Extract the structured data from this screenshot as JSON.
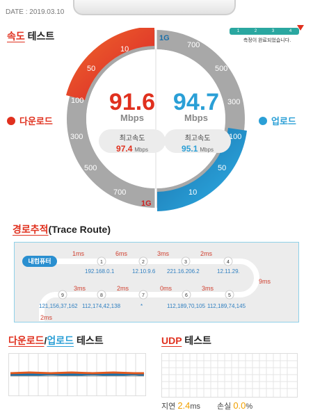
{
  "header": {
    "date_label": "DATE :",
    "date_value": "2019.03.10"
  },
  "speed_test": {
    "title_part1": "속도",
    "title_part2": " 테스트",
    "progress": {
      "steps": [
        "1",
        "2",
        "3",
        "4"
      ],
      "value_fraction": 1.0,
      "status_text": "측정이 완료되었습니다."
    },
    "download": {
      "label": "다운로드",
      "speed": "91.6",
      "unit": "Mbps",
      "max_label": "최고속도",
      "max_value": "97.4",
      "max_unit": "Mbps",
      "scale_labels": [
        "10",
        "50",
        "100",
        "300",
        "500",
        "700",
        "1G"
      ],
      "color": "#e0301e"
    },
    "upload": {
      "label": "업로드",
      "speed": "94.7",
      "unit": "Mbps",
      "max_label": "최고속도",
      "max_value": "95.1",
      "max_unit": "Mbps",
      "scale_labels": [
        "1G",
        "700",
        "500",
        "300",
        "100",
        "50",
        "10"
      ],
      "color": "#2a9fd6"
    }
  },
  "trace_route": {
    "title_main": "경로추적",
    "title_paren": "(Trace Route)",
    "start_label": "내컴퓨터",
    "hops": [
      {
        "n": "1",
        "ip": "192.168.0.1",
        "ms": "1ms"
      },
      {
        "n": "2",
        "ip": "12.10.9.6",
        "ms": "6ms"
      },
      {
        "n": "3",
        "ip": "221.16.206.2",
        "ms": "3ms"
      },
      {
        "n": "4",
        "ip": "12.11.29.",
        "ms": "2ms"
      },
      {
        "n": "5",
        "ip": "112,189,74,145",
        "ms": "9ms"
      },
      {
        "n": "6",
        "ip": "112,189,70,105",
        "ms": "3ms"
      },
      {
        "n": "7",
        "ip": "*",
        "ms": "0ms"
      },
      {
        "n": "8",
        "ip": "112,174,42,138",
        "ms": "2ms"
      },
      {
        "n": "9",
        "ip": "121,156,37,162",
        "ms": "3ms"
      }
    ],
    "tail_ms": "2ms"
  },
  "graph_section": {
    "title_part1": "다운로드",
    "sep": "/",
    "title_part2": "업로드",
    "title_part3": " 테스트"
  },
  "udp_section": {
    "title_part1": "UDP",
    "title_part2": " 테스트",
    "delay_label": "지연",
    "delay_value": "2.4",
    "delay_unit": "ms",
    "loss_label": "손실",
    "loss_value": "0.0",
    "loss_unit": "%"
  }
}
